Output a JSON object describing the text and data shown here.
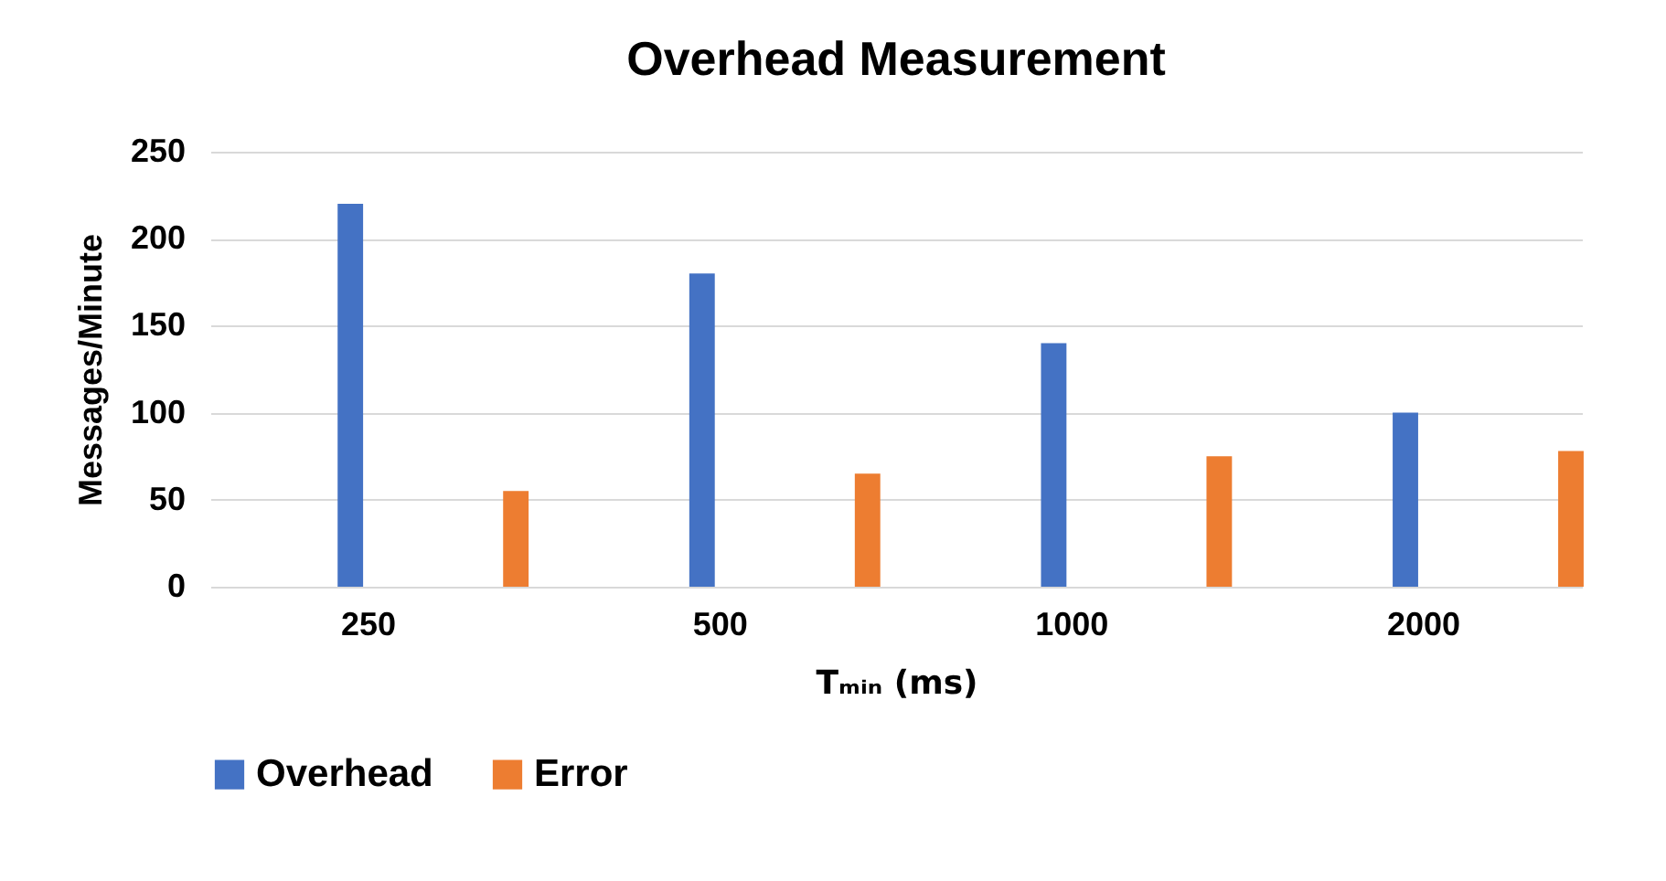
{
  "chart_data": {
    "type": "bar",
    "title": "Overhead Measurement",
    "xlabel": "Tₘᵢₙ (ms)",
    "ylabel": "Messages/Minute",
    "categories": [
      "250",
      "500",
      "1000",
      "2000"
    ],
    "series": [
      {
        "name": "Overhead",
        "color": "#4472c4",
        "values": [
          220,
          180,
          140,
          100
        ]
      },
      {
        "name": "Error",
        "color": "#ed7d31",
        "values": [
          55,
          65,
          75,
          78
        ]
      }
    ],
    "ylim": [
      0,
      250
    ],
    "yticks": [
      0,
      50,
      100,
      150,
      200,
      250
    ],
    "grid": "y",
    "legend": "bottom"
  }
}
